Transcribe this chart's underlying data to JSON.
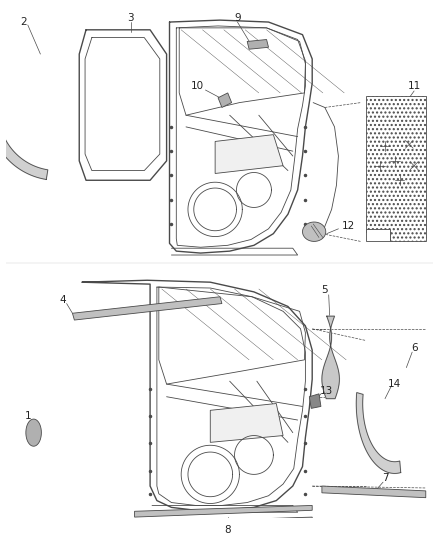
{
  "bg_color": "#ffffff",
  "line_color": "#4a4a4a",
  "label_color": "#222222",
  "fig_width": 4.39,
  "fig_height": 5.33,
  "dpi": 100
}
